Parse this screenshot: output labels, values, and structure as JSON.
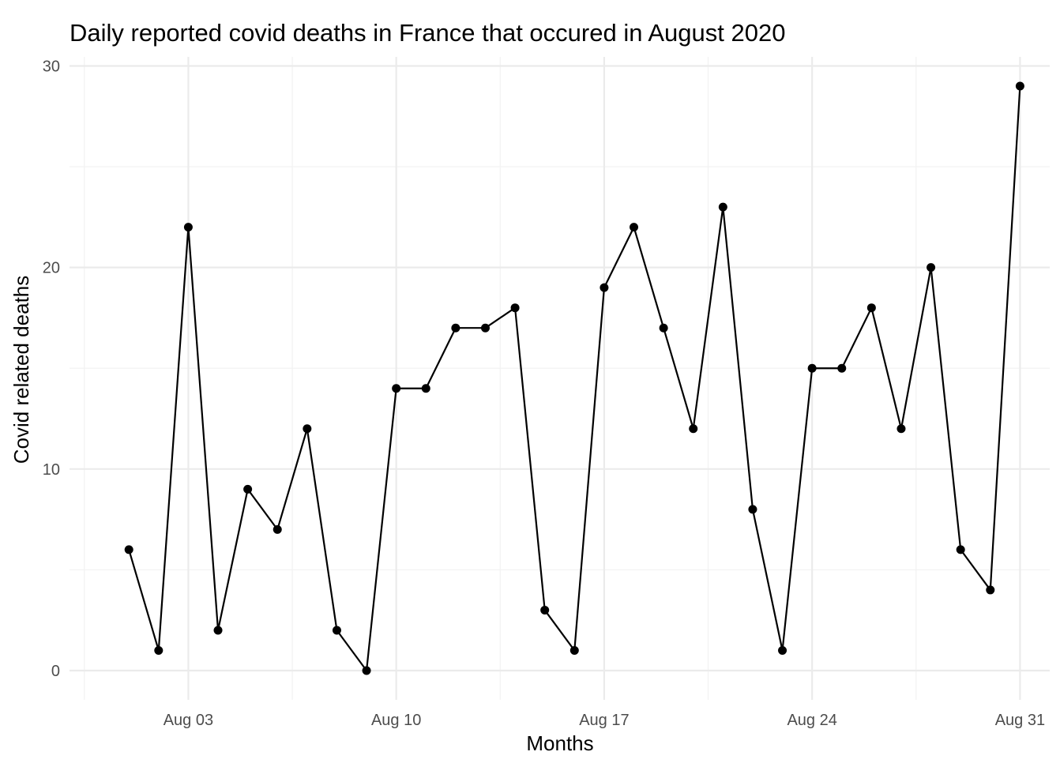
{
  "chart_data": {
    "type": "line",
    "title": "Daily reported covid deaths in France that occured in August 2020",
    "xlabel": "Months",
    "ylabel": "Covid related deaths",
    "x": [
      "2020-08-01",
      "2020-08-02",
      "2020-08-03",
      "2020-08-04",
      "2020-08-05",
      "2020-08-06",
      "2020-08-07",
      "2020-08-08",
      "2020-08-09",
      "2020-08-10",
      "2020-08-11",
      "2020-08-12",
      "2020-08-13",
      "2020-08-14",
      "2020-08-15",
      "2020-08-16",
      "2020-08-17",
      "2020-08-18",
      "2020-08-19",
      "2020-08-20",
      "2020-08-21",
      "2020-08-22",
      "2020-08-23",
      "2020-08-24",
      "2020-08-25",
      "2020-08-26",
      "2020-08-27",
      "2020-08-28",
      "2020-08-29",
      "2020-08-30",
      "2020-08-31"
    ],
    "values": [
      6,
      1,
      22,
      2,
      9,
      7,
      12,
      2,
      0,
      14,
      14,
      17,
      17,
      18,
      3,
      1,
      19,
      22,
      17,
      12,
      23,
      8,
      1,
      15,
      15,
      18,
      12,
      20,
      6,
      4,
      29
    ],
    "x_ticks": [
      {
        "date": "2020-08-03",
        "label": "Aug 03"
      },
      {
        "date": "2020-08-10",
        "label": "Aug 10"
      },
      {
        "date": "2020-08-17",
        "label": "Aug 17"
      },
      {
        "date": "2020-08-24",
        "label": "Aug 24"
      },
      {
        "date": "2020-08-31",
        "label": "Aug 31"
      }
    ],
    "y_ticks": [
      0,
      10,
      20,
      30
    ],
    "xlim": [
      "2020-07-30",
      "2020-09-01"
    ],
    "ylim": [
      -1.45,
      30.45
    ],
    "grid": true,
    "legend": "none",
    "colors": {
      "line": "#000000",
      "point": "#000000",
      "grid": "#ebebeb",
      "tick_text": "#4d4d4d"
    }
  }
}
